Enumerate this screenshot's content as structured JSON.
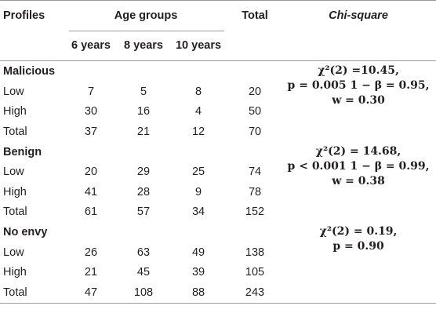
{
  "header": {
    "profiles": "Profiles",
    "age_groups": "Age groups",
    "total": "Total",
    "chi_square": "Chi-square",
    "ages": [
      "6 years",
      "8 years",
      "10 years"
    ]
  },
  "groups": [
    {
      "name": "Malicious",
      "rows": [
        {
          "label": "Low",
          "v6": "7",
          "v8": "5",
          "v10": "8",
          "total": "20"
        },
        {
          "label": "High",
          "v6": "30",
          "v8": "16",
          "v10": "4",
          "total": "50"
        },
        {
          "label": "Total",
          "v6": "37",
          "v8": "21",
          "v10": "12",
          "total": "70"
        }
      ],
      "chi": [
        "χ²(2) =10.45,",
        "p = 0.005 1 − β = 0.95,",
        "w = 0.30"
      ]
    },
    {
      "name": "Benign",
      "rows": [
        {
          "label": "Low",
          "v6": "20",
          "v8": "29",
          "v10": "25",
          "total": "74"
        },
        {
          "label": "High",
          "v6": "41",
          "v8": "28",
          "v10": "9",
          "total": "78"
        },
        {
          "label": "Total",
          "v6": "61",
          "v8": "57",
          "v10": "34",
          "total": "152"
        }
      ],
      "chi": [
        "χ²(2) = 14.68,",
        "p < 0.001 1 − β = 0.99,",
        "w = 0.38"
      ]
    },
    {
      "name": "No envy",
      "rows": [
        {
          "label": "Low",
          "v6": "26",
          "v8": "63",
          "v10": "49",
          "total": "138"
        },
        {
          "label": "High",
          "v6": "21",
          "v8": "45",
          "v10": "39",
          "total": "105"
        },
        {
          "label": "Total",
          "v6": "47",
          "v8": "108",
          "v10": "88",
          "total": "243"
        }
      ],
      "chi": [
        "χ²(2) = 0.19,",
        "p = 0.90"
      ]
    }
  ]
}
